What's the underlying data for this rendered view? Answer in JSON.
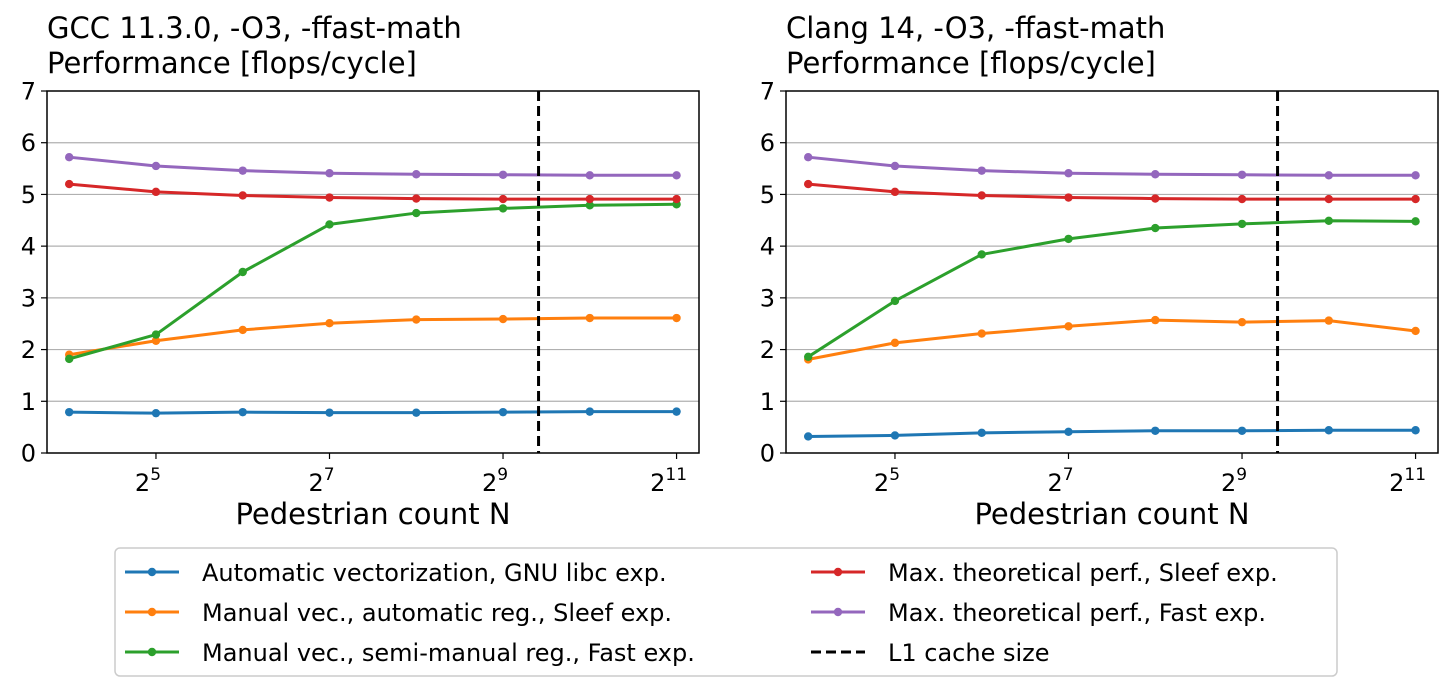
{
  "figure_caption": "",
  "colors": {
    "auto": "#1f77b4",
    "manual_auto": "#ff7f0e",
    "manual_semi": "#2ca02c",
    "max_sleef": "#d62728",
    "max_fast": "#9467bd",
    "cache": "#000000"
  },
  "legend": {
    "placement": "bottom-center",
    "items": [
      {
        "label": "Automatic vectorization, GNU libc exp.",
        "color": "#1f77b4",
        "style": "line-marker"
      },
      {
        "label": "Manual vec., automatic reg., Sleef exp.",
        "color": "#ff7f0e",
        "style": "line-marker"
      },
      {
        "label": "Manual vec., semi-manual reg., Fast exp.",
        "color": "#2ca02c",
        "style": "line-marker"
      },
      {
        "label": "Max. theoretical perf., Sleef exp.",
        "color": "#d62728",
        "style": "line-marker"
      },
      {
        "label": "Max. theoretical perf., Fast exp.",
        "color": "#9467bd",
        "style": "line-marker"
      },
      {
        "label": "L1 cache size",
        "color": "#000000",
        "style": "dashed"
      }
    ]
  },
  "chart_data": [
    {
      "type": "line",
      "title": "GCC 11.3.0, -O3, -ffast-math",
      "subtitle": "Performance [flops/cycle]",
      "xlabel": "Pedestrian count N",
      "ylabel": "",
      "x_scale": "log2",
      "x": [
        16,
        32,
        64,
        128,
        256,
        512,
        1024,
        2048
      ],
      "xticks": [
        {
          "value": 32,
          "base": "2",
          "exp": "5"
        },
        {
          "value": 128,
          "base": "2",
          "exp": "7"
        },
        {
          "value": 512,
          "base": "2",
          "exp": "9"
        },
        {
          "value": 2048,
          "base": "2",
          "exp": "11"
        }
      ],
      "xlim": [
        13.4,
        2450
      ],
      "ylim": [
        0,
        7
      ],
      "yticks": [
        "0",
        "1",
        "2",
        "3",
        "4",
        "5",
        "6",
        "7"
      ],
      "grid": "horizontal",
      "cache_line_x": 680,
      "series": [
        {
          "name": "Automatic vectorization, GNU libc exp.",
          "color": "#1f77b4",
          "values": [
            0.79,
            0.77,
            0.79,
            0.78,
            0.78,
            0.79,
            0.8,
            0.8
          ]
        },
        {
          "name": "Manual vec., automatic reg., Sleef exp.",
          "color": "#ff7f0e",
          "values": [
            1.9,
            2.17,
            2.38,
            2.51,
            2.58,
            2.59,
            2.61,
            2.61
          ]
        },
        {
          "name": "Manual vec., semi-manual reg., Fast exp.",
          "color": "#2ca02c",
          "values": [
            1.82,
            2.29,
            3.5,
            4.42,
            4.64,
            4.73,
            4.79,
            4.81
          ]
        },
        {
          "name": "Max. theoretical perf., Sleef exp.",
          "color": "#d62728",
          "values": [
            5.2,
            5.05,
            4.98,
            4.94,
            4.92,
            4.91,
            4.91,
            4.91
          ]
        },
        {
          "name": "Max. theoretical perf., Fast exp.",
          "color": "#9467bd",
          "values": [
            5.72,
            5.55,
            5.46,
            5.41,
            5.39,
            5.38,
            5.37,
            5.37
          ]
        }
      ]
    },
    {
      "type": "line",
      "title": "Clang 14, -O3, -ffast-math",
      "subtitle": "Performance [flops/cycle]",
      "xlabel": "Pedestrian count N",
      "ylabel": "",
      "x_scale": "log2",
      "x": [
        16,
        32,
        64,
        128,
        256,
        512,
        1024,
        2048
      ],
      "xticks": [
        {
          "value": 32,
          "base": "2",
          "exp": "5"
        },
        {
          "value": 128,
          "base": "2",
          "exp": "7"
        },
        {
          "value": 512,
          "base": "2",
          "exp": "9"
        },
        {
          "value": 2048,
          "base": "2",
          "exp": "11"
        }
      ],
      "xlim": [
        13.4,
        2450
      ],
      "ylim": [
        0,
        7
      ],
      "yticks": [
        "0",
        "1",
        "2",
        "3",
        "4",
        "5",
        "6",
        "7"
      ],
      "grid": "horizontal",
      "cache_line_x": 680,
      "series": [
        {
          "name": "Automatic vectorization, GNU libc exp.",
          "color": "#1f77b4",
          "values": [
            0.32,
            0.34,
            0.39,
            0.41,
            0.43,
            0.43,
            0.44,
            0.44
          ]
        },
        {
          "name": "Manual vec., automatic reg., Sleef exp.",
          "color": "#ff7f0e",
          "values": [
            1.81,
            2.13,
            2.31,
            2.45,
            2.57,
            2.53,
            2.56,
            2.36
          ]
        },
        {
          "name": "Manual vec., semi-manual reg., Fast exp.",
          "color": "#2ca02c",
          "values": [
            1.86,
            2.94,
            3.84,
            4.14,
            4.35,
            4.43,
            4.49,
            4.48
          ]
        },
        {
          "name": "Max. theoretical perf., Sleef exp.",
          "color": "#d62728",
          "values": [
            5.2,
            5.05,
            4.98,
            4.94,
            4.92,
            4.91,
            4.91,
            4.91
          ]
        },
        {
          "name": "Max. theoretical perf., Fast exp.",
          "color": "#9467bd",
          "values": [
            5.72,
            5.55,
            5.46,
            5.41,
            5.39,
            5.38,
            5.37,
            5.37
          ]
        }
      ]
    }
  ]
}
